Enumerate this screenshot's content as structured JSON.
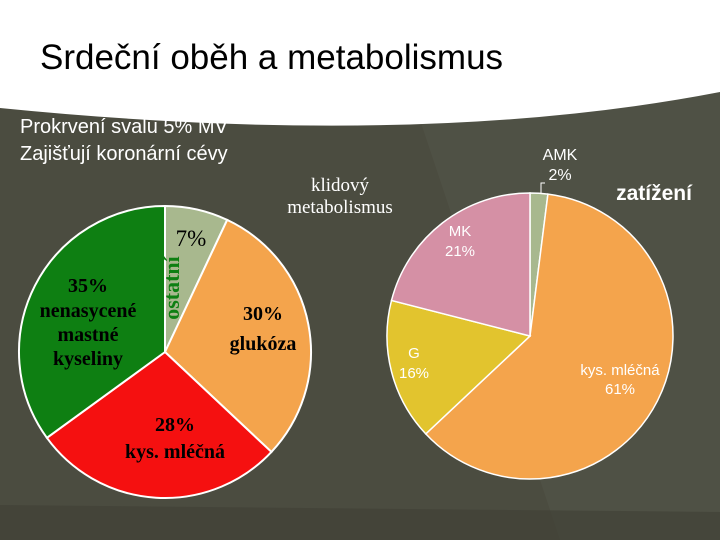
{
  "title": "Srdeční oběh a metabolismus",
  "subtitle_lines": [
    "Prokrvení svalu 5% MV",
    "Zajišťují koronární cévy"
  ],
  "colors": {
    "background": "#4b4c40",
    "title_band": "#ffffff",
    "green": "#0e7f12",
    "red": "#f51010",
    "orange": "#f4a44c",
    "gray_green": "#a8b88e",
    "pink": "#d590a5",
    "yellow": "#e2c42e"
  },
  "chart_data": [
    {
      "type": "pie",
      "title": "klidový metabolismus",
      "slices": [
        {
          "label": "ostatní",
          "value": 7,
          "value_label": "7%",
          "color": "#a8b88e"
        },
        {
          "label": "glukóza",
          "value": 30,
          "value_label": "30%",
          "color": "#f4a44c"
        },
        {
          "label": "kys. mléčná",
          "value": 28,
          "value_label": "28%",
          "color": "#f51010"
        },
        {
          "label": "nenasycené mastné kyseliny",
          "value": 35,
          "value_label": "35%",
          "color": "#0e7f12"
        }
      ]
    },
    {
      "type": "pie",
      "title": "zatížení",
      "slices": [
        {
          "label": "AMK",
          "value": 2,
          "value_label": "2%",
          "color": "#a8b88e"
        },
        {
          "label": "kys. mléčná",
          "value": 61,
          "value_label": "61%",
          "color": "#f4a44c"
        },
        {
          "label": "G",
          "value": 16,
          "value_label": "16%",
          "color": "#e2c42e"
        },
        {
          "label": "MK",
          "value": 21,
          "value_label": "21%",
          "color": "#d590a5"
        }
      ]
    }
  ]
}
